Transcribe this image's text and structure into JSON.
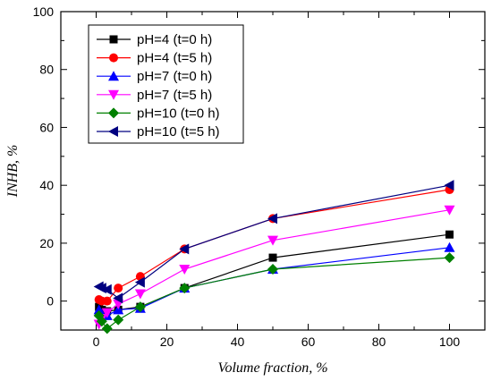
{
  "chart_data": {
    "type": "line",
    "title": "",
    "xlabel": "Volume fraction, %",
    "ylabel": "INHB, %",
    "xlim": [
      -10,
      110
    ],
    "ylim": [
      -10,
      100
    ],
    "xticks": [
      0,
      20,
      40,
      60,
      80,
      100
    ],
    "yticks": [
      0,
      20,
      40,
      60,
      80,
      100
    ],
    "grid": false,
    "legend_position": "top-left",
    "x": [
      0.8,
      1.6,
      3.1,
      6.25,
      12.5,
      25,
      50,
      100
    ],
    "series": [
      {
        "name": "pH=4 (t=0 h)",
        "color": "#000000",
        "marker": "square",
        "values": [
          -2,
          -3,
          -3.5,
          -3,
          -2,
          4.5,
          15,
          23
        ]
      },
      {
        "name": "pH=4 (t=5 h)",
        "color": "#ff0000",
        "marker": "circle",
        "values": [
          0.5,
          0,
          0,
          4.5,
          8.5,
          18,
          28.5,
          38.5
        ]
      },
      {
        "name": "pH=7 (t=0 h)",
        "color": "#0000ff",
        "marker": "triangle-up",
        "values": [
          -3,
          -4.5,
          -5,
          -3,
          -2.5,
          4.5,
          11,
          18.5
        ]
      },
      {
        "name": "pH=7 (t=5 h)",
        "color": "#ff00ff",
        "marker": "triangle-down",
        "values": [
          -8,
          -6,
          -4,
          -1,
          2.5,
          11,
          21,
          31.5
        ]
      },
      {
        "name": "pH=10 (t=0 h)",
        "color": "#008000",
        "marker": "diamond",
        "values": [
          -5,
          -7,
          -9.5,
          -6.5,
          -2,
          4.5,
          11,
          15
        ]
      },
      {
        "name": "pH=10 (t=5 h)",
        "color": "#000080",
        "marker": "triangle-left",
        "values": [
          5,
          4.5,
          4,
          1,
          6.5,
          18,
          28.5,
          40
        ]
      }
    ]
  }
}
